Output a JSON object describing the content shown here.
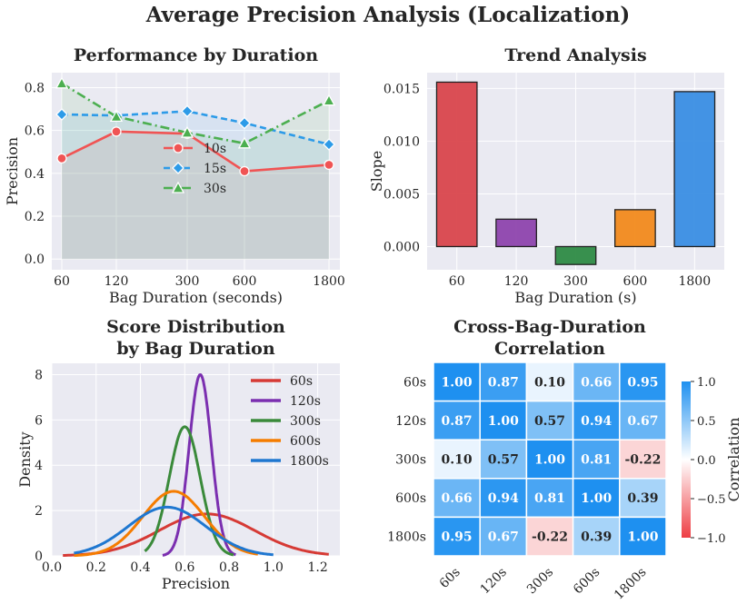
{
  "title": "Average Precision Analysis (Localization)",
  "chart_data": [
    {
      "type": "line",
      "title": "Performance by Duration",
      "xlabel": "Bag Duration (seconds)",
      "ylabel": "Precision",
      "categories": [
        "60",
        "120",
        "300",
        "600",
        "1800"
      ],
      "ylim": [
        -0.05,
        0.87
      ],
      "yticks": [
        "0.0",
        "0.2",
        "0.4",
        "0.6",
        "0.8"
      ],
      "series": [
        {
          "name": "10s",
          "color": "#f05454",
          "marker": "circle",
          "values": [
            0.47,
            0.595,
            0.585,
            0.41,
            0.44
          ]
        },
        {
          "name": "15s",
          "color": "#2d9be8",
          "marker": "diamond",
          "values": [
            0.675,
            0.67,
            0.69,
            0.635,
            0.535
          ]
        },
        {
          "name": "30s",
          "color": "#4caf50",
          "marker": "triangle",
          "values": [
            0.82,
            0.665,
            0.59,
            0.54,
            0.74
          ]
        }
      ]
    },
    {
      "type": "bar",
      "title": "Trend Analysis",
      "xlabel": "Bag Duration (s)",
      "ylabel": "Slope",
      "categories": [
        "60",
        "120",
        "300",
        "600",
        "1800"
      ],
      "values": [
        0.0156,
        0.0026,
        -0.0017,
        0.0035,
        0.0147
      ],
      "colors": [
        "#d9464c",
        "#8e44ad",
        "#2e8b44",
        "#f28a1c",
        "#3a8ee3"
      ],
      "ylim": [
        -0.0022,
        0.0165
      ],
      "yticks": [
        "0.000",
        "0.005",
        "0.010",
        "0.015"
      ]
    },
    {
      "type": "line",
      "title_lines": [
        "Score Distribution",
        "by Bag Duration"
      ],
      "xlabel": "Precision",
      "ylabel": "Density",
      "xlim": [
        0.0,
        1.3
      ],
      "ylim": [
        0,
        8.5
      ],
      "xticks": [
        "0.0",
        "0.2",
        "0.4",
        "0.6",
        "0.8",
        "1.0",
        "1.2"
      ],
      "yticks": [
        "0",
        "2",
        "4",
        "6",
        "8"
      ],
      "series": [
        {
          "name": "60s",
          "color": "#d63a35",
          "mu": 0.7,
          "sigma": 0.215,
          "peak": 1.85,
          "range": [
            0.05,
            1.25
          ]
        },
        {
          "name": "120s",
          "color": "#7b2fb0",
          "mu": 0.67,
          "sigma": 0.05,
          "peak": 8.0,
          "range": [
            0.5,
            0.83
          ]
        },
        {
          "name": "300s",
          "color": "#3a8a3a",
          "mu": 0.6,
          "sigma": 0.07,
          "peak": 5.7,
          "range": [
            0.42,
            0.82
          ]
        },
        {
          "name": "600s",
          "color": "#f57c00",
          "mu": 0.55,
          "sigma": 0.14,
          "peak": 2.85,
          "range": [
            0.1,
            0.93
          ]
        },
        {
          "name": "1800s",
          "color": "#1f77d0",
          "mu": 0.52,
          "sigma": 0.175,
          "peak": 2.15,
          "range": [
            0.1,
            1.0
          ]
        }
      ]
    },
    {
      "type": "heatmap",
      "title_lines": [
        "Cross-Bag-Duration",
        "Correlation"
      ],
      "labels": [
        "60s",
        "120s",
        "300s",
        "600s",
        "1800s"
      ],
      "matrix": [
        [
          1.0,
          0.87,
          0.1,
          0.66,
          0.95
        ],
        [
          0.87,
          1.0,
          0.57,
          0.94,
          0.67
        ],
        [
          0.1,
          0.57,
          1.0,
          0.81,
          -0.22
        ],
        [
          0.66,
          0.94,
          0.81,
          1.0,
          0.39
        ],
        [
          0.95,
          0.67,
          -0.22,
          0.39,
          1.0
        ]
      ],
      "colorbar_label": "Correlation",
      "colorbar_ticks": [
        "1.0",
        "0.5",
        "0.0",
        "−0.5",
        "−1.0"
      ]
    }
  ]
}
